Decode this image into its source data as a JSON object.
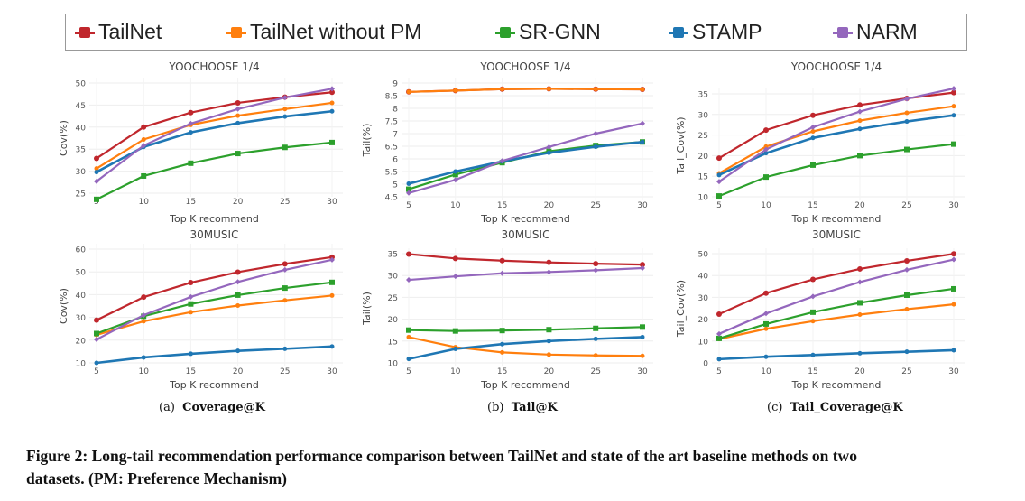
{
  "legend": [
    {
      "name": "TailNet",
      "color": "#c0272d"
    },
    {
      "name": "TailNet without PM",
      "color": "#ff7f0e"
    },
    {
      "name": "SR-GNN",
      "color": "#2ca02c"
    },
    {
      "name": "STAMP",
      "color": "#1f77b4"
    },
    {
      "name": "NARM",
      "color": "#9467bd"
    }
  ],
  "subcaptions": [
    {
      "prefix": "(a)",
      "label": "Coverage@K"
    },
    {
      "prefix": "(b)",
      "label": "Tail@K"
    },
    {
      "prefix": "(c)",
      "label": "Tail_Coverage@K"
    }
  ],
  "caption": {
    "line1": "Figure 2: Long-tail recommendation performance comparison between TailNet and state of the art baseline methods on two",
    "line2": "datasets. (PM: Preference Mechanism)"
  },
  "chart_data": [
    {
      "type": "line",
      "title": "YOOCHOOSE 1/4",
      "xlabel": "Top K recommend",
      "ylabel": "Cov(%)",
      "x": [
        5,
        10,
        15,
        20,
        25,
        30
      ],
      "yticks": [
        25,
        30,
        35,
        40,
        45,
        50
      ],
      "grid": true,
      "series": [
        {
          "name": "TailNet",
          "values": [
            32.9,
            40.0,
            43.3,
            45.5,
            46.8,
            47.9
          ]
        },
        {
          "name": "TailNet without PM",
          "values": [
            30.6,
            37.2,
            40.5,
            42.6,
            44.1,
            45.5
          ]
        },
        {
          "name": "SR-GNN",
          "values": [
            23.6,
            28.9,
            31.8,
            34.0,
            35.4,
            36.5
          ]
        },
        {
          "name": "STAMP",
          "values": [
            29.8,
            35.5,
            38.8,
            40.9,
            42.4,
            43.6
          ]
        },
        {
          "name": "NARM",
          "values": [
            27.7,
            35.8,
            40.8,
            44.1,
            46.7,
            48.7
          ]
        }
      ]
    },
    {
      "type": "line",
      "title": "YOOCHOOSE 1/4",
      "xlabel": "Top K recommend",
      "ylabel": "Tail(%)",
      "x": [
        5,
        10,
        15,
        20,
        25,
        30
      ],
      "yticks": [
        4.5,
        5,
        5.5,
        6,
        6.5,
        7,
        7.5,
        8,
        8.5,
        9
      ],
      "grid": true,
      "series": [
        {
          "name": "TailNet",
          "values": [
            8.65,
            8.7,
            8.76,
            8.77,
            8.76,
            8.75
          ]
        },
        {
          "name": "TailNet without PM",
          "values": [
            8.65,
            8.7,
            8.76,
            8.77,
            8.76,
            8.75
          ]
        },
        {
          "name": "SR-GNN",
          "values": [
            4.8,
            5.38,
            5.85,
            6.3,
            6.53,
            6.67
          ]
        },
        {
          "name": "STAMP",
          "values": [
            5.02,
            5.5,
            5.9,
            6.24,
            6.48,
            6.67
          ]
        },
        {
          "name": "NARM",
          "values": [
            4.65,
            5.17,
            5.92,
            6.47,
            7.0,
            7.4
          ]
        }
      ]
    },
    {
      "type": "line",
      "title": "YOOCHOOSE 1/4",
      "xlabel": "Top K recommend",
      "ylabel": "Tail_Cov(%)",
      "x": [
        5,
        10,
        15,
        20,
        25,
        30
      ],
      "yticks": [
        10,
        15,
        20,
        25,
        30,
        35
      ],
      "grid": true,
      "series": [
        {
          "name": "TailNet",
          "values": [
            19.4,
            26.2,
            29.8,
            32.3,
            33.9,
            35.3
          ]
        },
        {
          "name": "TailNet without PM",
          "values": [
            15.7,
            22.2,
            25.9,
            28.5,
            30.4,
            32.0
          ]
        },
        {
          "name": "SR-GNN",
          "values": [
            10.2,
            14.8,
            17.7,
            20.0,
            21.5,
            22.8
          ]
        },
        {
          "name": "STAMP",
          "values": [
            15.3,
            20.6,
            24.3,
            26.5,
            28.3,
            29.8
          ]
        },
        {
          "name": "NARM",
          "values": [
            13.7,
            21.5,
            26.9,
            30.7,
            33.8,
            36.3
          ]
        }
      ]
    },
    {
      "type": "line",
      "title": "30MUSIC",
      "xlabel": "Top K recommend",
      "ylabel": "Cov(%)",
      "x": [
        5,
        10,
        15,
        20,
        25,
        30
      ],
      "yticks": [
        10,
        20,
        30,
        40,
        50,
        60
      ],
      "grid": true,
      "series": [
        {
          "name": "TailNet",
          "values": [
            28.8,
            38.9,
            45.3,
            49.9,
            53.5,
            56.5
          ]
        },
        {
          "name": "TailNet without PM",
          "values": [
            22.3,
            28.3,
            32.3,
            35.2,
            37.5,
            39.6
          ]
        },
        {
          "name": "SR-GNN",
          "values": [
            22.9,
            30.5,
            35.9,
            39.8,
            42.9,
            45.4
          ]
        },
        {
          "name": "STAMP",
          "values": [
            10.0,
            12.4,
            14.0,
            15.3,
            16.2,
            17.2
          ]
        },
        {
          "name": "NARM",
          "values": [
            20.3,
            31.0,
            39.0,
            45.6,
            50.9,
            55.3
          ]
        }
      ]
    },
    {
      "type": "line",
      "title": "30MUSIC",
      "xlabel": "Top K recommend",
      "ylabel": "Tail(%)",
      "x": [
        5,
        10,
        15,
        20,
        25,
        30
      ],
      "yticks": [
        10,
        15,
        20,
        25,
        30,
        35
      ],
      "grid": true,
      "series": [
        {
          "name": "TailNet",
          "values": [
            34.9,
            33.9,
            33.4,
            33.0,
            32.7,
            32.5
          ]
        },
        {
          "name": "TailNet without PM",
          "values": [
            15.9,
            13.6,
            12.4,
            11.9,
            11.7,
            11.6
          ]
        },
        {
          "name": "SR-GNN",
          "values": [
            17.5,
            17.3,
            17.4,
            17.6,
            17.9,
            18.2
          ]
        },
        {
          "name": "STAMP",
          "values": [
            10.9,
            13.2,
            14.3,
            15.0,
            15.5,
            15.9
          ]
        },
        {
          "name": "NARM",
          "values": [
            29.0,
            29.8,
            30.5,
            30.8,
            31.2,
            31.7
          ]
        }
      ]
    },
    {
      "type": "line",
      "title": "30MUSIC",
      "xlabel": "Top K recommend",
      "ylabel": "Tail_Cov(%)",
      "x": [
        5,
        10,
        15,
        20,
        25,
        30
      ],
      "yticks": [
        0,
        10,
        20,
        30,
        40,
        50
      ],
      "grid": true,
      "series": [
        {
          "name": "TailNet",
          "values": [
            22.3,
            31.9,
            38.2,
            43.0,
            46.7,
            49.9
          ]
        },
        {
          "name": "TailNet without PM",
          "values": [
            10.9,
            15.6,
            19.1,
            22.1,
            24.6,
            26.8
          ]
        },
        {
          "name": "SR-GNN",
          "values": [
            11.2,
            17.8,
            23.2,
            27.5,
            31.0,
            33.9
          ]
        },
        {
          "name": "STAMP",
          "values": [
            1.7,
            2.8,
            3.6,
            4.4,
            5.1,
            5.8
          ]
        },
        {
          "name": "NARM",
          "values": [
            13.3,
            22.6,
            30.4,
            37.0,
            42.6,
            47.3
          ]
        }
      ]
    }
  ]
}
